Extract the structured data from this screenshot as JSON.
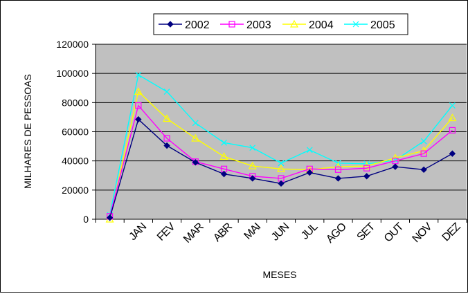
{
  "chart_data": {
    "type": "line",
    "x": [
      "",
      "JAN",
      "FEV",
      "MAR",
      "ABR",
      "MAI",
      "JUN",
      "JUL",
      "AGO",
      "SET",
      "OUT",
      "NOV",
      "DEZ"
    ],
    "xlabel": "MESES",
    "ylabel": "MILHARES DE PESSOAS",
    "ylim": [
      0,
      120000
    ],
    "yticks": [
      0,
      20000,
      40000,
      60000,
      80000,
      100000,
      120000
    ],
    "grid": true,
    "legend_position": "top",
    "plot_background": "#c0c0c0",
    "series": [
      {
        "name": "2002",
        "color": "#000080",
        "marker": "diamond",
        "values": [
          1000,
          68500,
          50500,
          39000,
          31000,
          28000,
          24500,
          32000,
          28000,
          29500,
          36000,
          34000,
          45000
        ]
      },
      {
        "name": "2003",
        "color": "#ff00ff",
        "marker": "square",
        "values": [
          2000,
          78000,
          55500,
          39500,
          34500,
          29500,
          28000,
          34500,
          34000,
          35000,
          40000,
          45000,
          61000
        ]
      },
      {
        "name": "2004",
        "color": "#ffff00",
        "marker": "triangle",
        "values": [
          0,
          87500,
          69000,
          55500,
          43000,
          36500,
          34500,
          34000,
          36000,
          36500,
          42000,
          47000,
          69500
        ]
      },
      {
        "name": "2005",
        "color": "#00ffff",
        "marker": "x",
        "values": [
          3000,
          99000,
          87500,
          66000,
          52500,
          49000,
          38500,
          47500,
          38500,
          38000,
          40500,
          53500,
          78000
        ]
      }
    ]
  }
}
